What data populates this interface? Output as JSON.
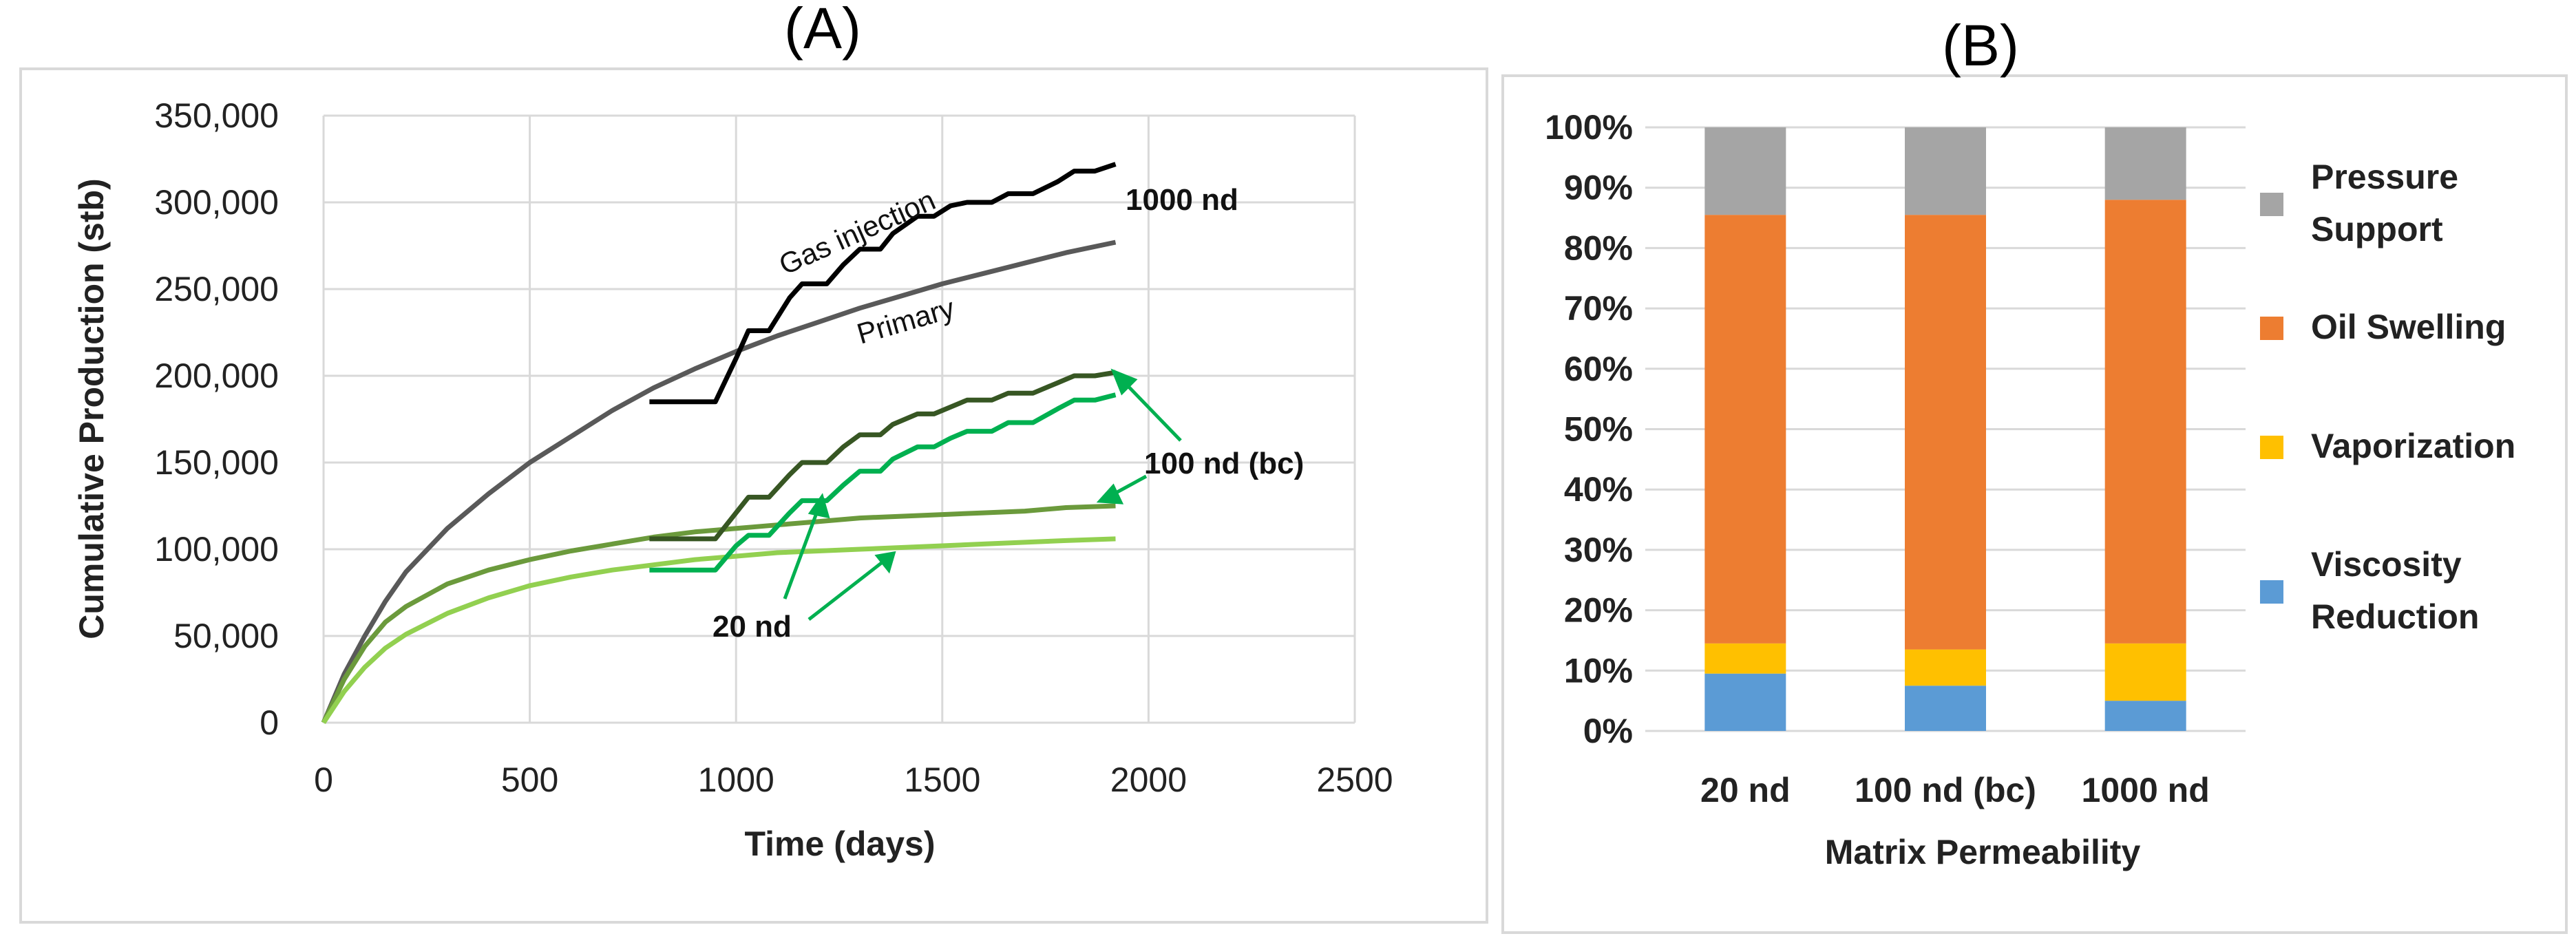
{
  "chart_data": [
    {
      "panel": "(A)",
      "type": "line",
      "xlabel": "Time (days)",
      "ylabel": "Cumulative Production (stb)",
      "xlim": [
        0,
        2500
      ],
      "ylim": [
        0,
        350000
      ],
      "x_ticks": [
        "0",
        "500",
        "1000",
        "1500",
        "2000",
        "2500"
      ],
      "y_ticks": [
        "0",
        "50,000",
        "100,000",
        "150,000",
        "200,000",
        "250,000",
        "300,000",
        "350,000"
      ],
      "grid": true,
      "series": [
        {
          "name": "1000 nd primary",
          "color": "#595959",
          "width": 7,
          "points": [
            [
              0,
              0
            ],
            [
              50,
              28000
            ],
            [
              100,
              50000
            ],
            [
              150,
              70000
            ],
            [
              200,
              87000
            ],
            [
              300,
              112000
            ],
            [
              400,
              132000
            ],
            [
              500,
              150000
            ],
            [
              600,
              165000
            ],
            [
              700,
              180000
            ],
            [
              800,
              193000
            ],
            [
              900,
              204000
            ],
            [
              1000,
              214000
            ],
            [
              1100,
              223000
            ],
            [
              1200,
              231000
            ],
            [
              1300,
              239000
            ],
            [
              1400,
              246000
            ],
            [
              1500,
              253000
            ],
            [
              1600,
              259000
            ],
            [
              1700,
              265000
            ],
            [
              1800,
              271000
            ],
            [
              1920,
              277000
            ]
          ]
        },
        {
          "name": "1000 nd gas injection",
          "color": "#000000",
          "width": 7,
          "points": [
            [
              790,
              185000
            ],
            [
              950,
              185000
            ],
            [
              1000,
              210000
            ],
            [
              1030,
              226000
            ],
            [
              1080,
              226000
            ],
            [
              1130,
              245000
            ],
            [
              1160,
              253000
            ],
            [
              1220,
              253000
            ],
            [
              1260,
              264000
            ],
            [
              1300,
              273000
            ],
            [
              1350,
              273000
            ],
            [
              1380,
              282000
            ],
            [
              1440,
              292000
            ],
            [
              1480,
              292000
            ],
            [
              1520,
              298000
            ],
            [
              1560,
              300000
            ],
            [
              1620,
              300000
            ],
            [
              1660,
              305000
            ],
            [
              1720,
              305000
            ],
            [
              1780,
              312000
            ],
            [
              1820,
              318000
            ],
            [
              1870,
              318000
            ],
            [
              1920,
              322000
            ]
          ]
        },
        {
          "name": "100 nd (bc) primary",
          "color": "#6b9a3c",
          "width": 7,
          "points": [
            [
              0,
              0
            ],
            [
              50,
              25000
            ],
            [
              100,
              44000
            ],
            [
              150,
              58000
            ],
            [
              200,
              67000
            ],
            [
              300,
              80000
            ],
            [
              400,
              88000
            ],
            [
              500,
              94000
            ],
            [
              600,
              99000
            ],
            [
              700,
              103000
            ],
            [
              800,
              107000
            ],
            [
              900,
              110000
            ],
            [
              1000,
              112000
            ],
            [
              1100,
              114000
            ],
            [
              1200,
              116000
            ],
            [
              1300,
              118000
            ],
            [
              1400,
              119000
            ],
            [
              1500,
              120000
            ],
            [
              1600,
              121000
            ],
            [
              1700,
              122000
            ],
            [
              1800,
              124000
            ],
            [
              1920,
              125000
            ]
          ]
        },
        {
          "name": "100 nd (bc) gas injection",
          "color": "#375623",
          "width": 7,
          "points": [
            [
              790,
              106000
            ],
            [
              950,
              106000
            ],
            [
              1000,
              121000
            ],
            [
              1030,
              130000
            ],
            [
              1080,
              130000
            ],
            [
              1130,
              143000
            ],
            [
              1160,
              150000
            ],
            [
              1220,
              150000
            ],
            [
              1260,
              159000
            ],
            [
              1300,
              166000
            ],
            [
              1350,
              166000
            ],
            [
              1380,
              172000
            ],
            [
              1440,
              178000
            ],
            [
              1480,
              178000
            ],
            [
              1520,
              182000
            ],
            [
              1560,
              186000
            ],
            [
              1620,
              186000
            ],
            [
              1660,
              190000
            ],
            [
              1720,
              190000
            ],
            [
              1780,
              196000
            ],
            [
              1820,
              200000
            ],
            [
              1870,
              200000
            ],
            [
              1920,
              202000
            ]
          ]
        },
        {
          "name": "20 nd primary",
          "color": "#92d050",
          "width": 7,
          "points": [
            [
              0,
              0
            ],
            [
              50,
              18000
            ],
            [
              100,
              32000
            ],
            [
              150,
              43000
            ],
            [
              200,
              51000
            ],
            [
              300,
              63000
            ],
            [
              400,
              72000
            ],
            [
              500,
              79000
            ],
            [
              600,
              84000
            ],
            [
              700,
              88000
            ],
            [
              800,
              91000
            ],
            [
              900,
              94000
            ],
            [
              1000,
              96000
            ],
            [
              1100,
              98000
            ],
            [
              1200,
              99000
            ],
            [
              1300,
              100000
            ],
            [
              1400,
              101000
            ],
            [
              1500,
              102000
            ],
            [
              1600,
              103000
            ],
            [
              1700,
              104000
            ],
            [
              1800,
              105000
            ],
            [
              1920,
              106000
            ]
          ]
        },
        {
          "name": "20 nd gas injection",
          "color": "#00b050",
          "width": 7,
          "points": [
            [
              790,
              88000
            ],
            [
              950,
              88000
            ],
            [
              1000,
              102000
            ],
            [
              1030,
              108000
            ],
            [
              1080,
              108000
            ],
            [
              1130,
              121000
            ],
            [
              1160,
              128000
            ],
            [
              1220,
              128000
            ],
            [
              1260,
              137000
            ],
            [
              1300,
              145000
            ],
            [
              1350,
              145000
            ],
            [
              1380,
              152000
            ],
            [
              1440,
              159000
            ],
            [
              1480,
              159000
            ],
            [
              1520,
              164000
            ],
            [
              1560,
              168000
            ],
            [
              1620,
              168000
            ],
            [
              1660,
              173000
            ],
            [
              1720,
              173000
            ],
            [
              1780,
              181000
            ],
            [
              1820,
              186000
            ],
            [
              1870,
              186000
            ],
            [
              1920,
              189000
            ]
          ]
        }
      ],
      "annotations": {
        "gas_injection": "Gas injection",
        "primary": "Primary",
        "k1000": "1000 nd",
        "k100": "100 nd (bc)",
        "k20": "20 nd"
      }
    },
    {
      "panel": "(B)",
      "type": "bar",
      "stacked": true,
      "xlabel": "Matrix Permeability",
      "categories": [
        "20 nd",
        "100 nd (bc)",
        "1000 nd"
      ],
      "ylim": [
        0,
        100
      ],
      "y_ticks": [
        "0%",
        "10%",
        "20%",
        "30%",
        "40%",
        "50%",
        "60%",
        "70%",
        "80%",
        "90%",
        "100%"
      ],
      "series": [
        {
          "name": "Viscosity Reduction",
          "legend_lines": [
            "Viscosity",
            "Reduction"
          ],
          "color": "#5b9bd5",
          "values": [
            9.5,
            7.5,
            5
          ]
        },
        {
          "name": "Vaporization",
          "legend_lines": [
            "Vaporization"
          ],
          "color": "#ffc000",
          "values": [
            5,
            6,
            9.5
          ]
        },
        {
          "name": "Oil Swelling",
          "legend_lines": [
            "Oil Swelling"
          ],
          "color": "#ed7d31",
          "values": [
            71,
            72,
            73.5
          ]
        },
        {
          "name": "Pressure Support",
          "legend_lines": [
            "Pressure",
            "Support"
          ],
          "color": "#a5a5a5",
          "values": [
            14.5,
            14.5,
            12
          ]
        }
      ]
    }
  ]
}
